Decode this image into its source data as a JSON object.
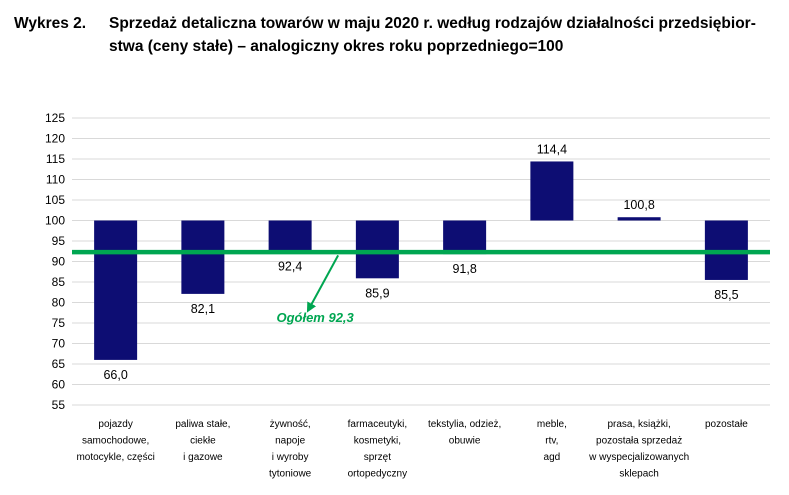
{
  "title_number": "Wykres 2.",
  "title_line1": "Sprzedaż detaliczna towarów w maju 2020 r. według rodzajów działalności przedsiębior-",
  "title_line2": "stwa (ceny stałe) – analogiczny okres roku poprzedniego=100",
  "colors": {
    "bar": "#0d0d73",
    "overall_line": "#00a651",
    "grid": "#d9d9d9"
  },
  "chart_data": {
    "type": "bar",
    "baseline": 100,
    "ylim": [
      55,
      125
    ],
    "yticks": [
      125,
      120,
      115,
      110,
      105,
      100,
      95,
      90,
      85,
      80,
      75,
      70,
      65,
      60,
      55
    ],
    "grid": true,
    "categories": [
      [
        "pojazdy",
        "samochodowe,",
        "motocykle, części"
      ],
      [
        "paliwa stałe,",
        "ciekłe",
        "i gazowe"
      ],
      [
        "żywność,",
        "napoje",
        "i wyroby",
        "tytoniowe"
      ],
      [
        "farmaceutyki,",
        "kosmetyki,",
        "sprzęt",
        "ortopedyczny"
      ],
      [
        "tekstylia, odzież,",
        "obuwie"
      ],
      [
        "meble,",
        "rtv,",
        "agd"
      ],
      [
        "prasa, książki,",
        "pozostała sprzedaż",
        "w wyspecjalizowanych",
        "sklepach"
      ],
      [
        "pozostałe"
      ]
    ],
    "values": [
      66.0,
      82.1,
      92.4,
      85.9,
      91.8,
      114.4,
      100.8,
      85.5
    ],
    "value_labels": [
      "66,0",
      "82,1",
      "92,4",
      "85,9",
      "91,8",
      "114,4",
      "100,8",
      "85,5"
    ],
    "overall": {
      "value": 92.3,
      "label": "Ogółem 92,3"
    }
  }
}
